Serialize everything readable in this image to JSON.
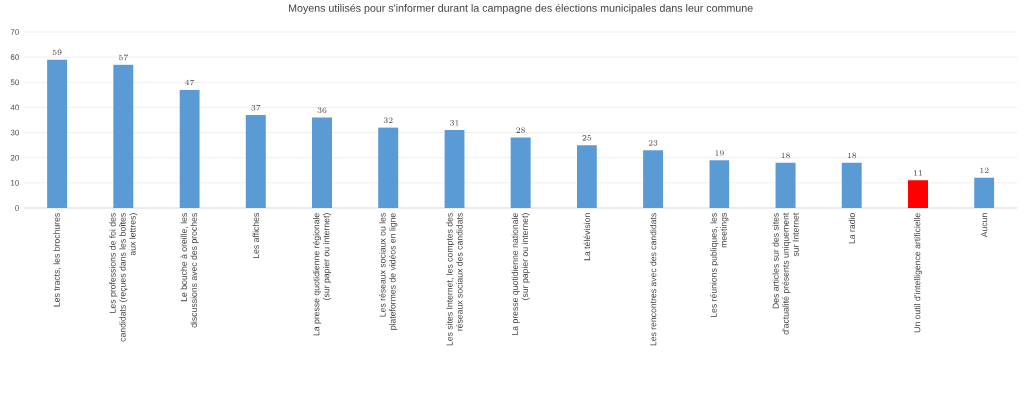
{
  "chart_data": {
    "type": "bar",
    "title": "Moyens utilisés pour s'informer durant la campagne des élections municipales dans leur commune",
    "categories": [
      "Les tracts, les brochures",
      "Les professions de foi des candidats (reçues dans les boîtes aux lettres)",
      "Le bouche à oreille, les discussions avec des proches",
      "Les affiches",
      "La presse quotidienne régionale (sur papier ou internet)",
      "Les réseaux sociaux ou les plateformes de vidéos en ligne",
      "Les sites Internet, les comptes des réseaux sociaux des candidats",
      "La presse quotidienne nationale (sur papier ou internet)",
      "La télévision",
      "Les rencontres avec des candidats",
      "Les réunions publiques, les meetings",
      "Des articles sur des sites d'actualité présents uniquement sur Internet",
      "La radio",
      "Un outil d'intelligence artificielle",
      "Aucun"
    ],
    "values": [
      59,
      57,
      47,
      37,
      36,
      32,
      31,
      28,
      25,
      23,
      19,
      18,
      18,
      11,
      12
    ],
    "colors": [
      "#5b9bd5",
      "#5b9bd5",
      "#5b9bd5",
      "#5b9bd5",
      "#5b9bd5",
      "#5b9bd5",
      "#5b9bd5",
      "#5b9bd5",
      "#5b9bd5",
      "#5b9bd5",
      "#5b9bd5",
      "#5b9bd5",
      "#5b9bd5",
      "#ff0000",
      "#5b9bd5"
    ],
    "ylim": [
      0,
      70
    ],
    "yticks": [
      0,
      10,
      20,
      30,
      40,
      50,
      60,
      70
    ],
    "grid": "y",
    "data_labels": true
  }
}
